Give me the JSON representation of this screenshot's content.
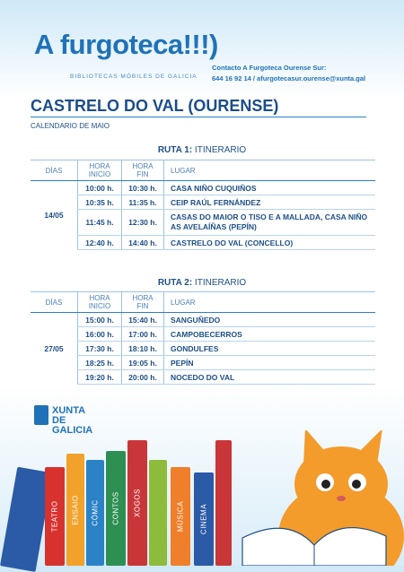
{
  "header": {
    "brand": "A furgoteca!!!)",
    "brand_sub": "BIBLIOTECAS MÓBILES DE GALICIA",
    "contact_title": "Contacto A Furgoteca Ourense Sur:",
    "contact_line": "644 16 92 14 / afurgotecasur.ourense@xunta.gal"
  },
  "town": "CASTRELO DO VAL (OURENSE)",
  "calendar": "CALENDARIO DE MAIO",
  "columns": {
    "dias": "DÍAS",
    "hora_inicio": [
      "HORA",
      "INICIO"
    ],
    "hora_fin": [
      "HORA",
      "FIN"
    ],
    "lugar": "LUGAR"
  },
  "route1": {
    "title_bold": "RUTA 1:",
    "title_rest": " ITINERARIO",
    "day": "14/05",
    "rows": [
      {
        "start": "10:00 h.",
        "end": "10:30 h.",
        "place": "CASA NIÑO CUQUIÑOS"
      },
      {
        "start": "10:35 h.",
        "end": "11:35 h.",
        "place": "CEIP RAÚL FERNÁNDEZ"
      },
      {
        "start": "11:45 h.",
        "end": "12:30 h.",
        "place": "CASAS DO MAIOR O TISO E A MALLADA, CASA NIÑO AS AVELAÍÑAS (PEPÍN)"
      },
      {
        "start": "12:40 h.",
        "end": "14:40 h.",
        "place": "CASTRELO DO VAL (CONCELLO)"
      }
    ]
  },
  "route2": {
    "title_bold": "RUTA 2:",
    "title_rest": " ITINERARIO",
    "day": "27/05",
    "rows": [
      {
        "start": "15:00 h.",
        "end": "15:40 h.",
        "place": "SANGUÑEDO"
      },
      {
        "start": "16:00 h.",
        "end": "17:00 h.",
        "place": "CAMPOBECERROS"
      },
      {
        "start": "17:30 h.",
        "end": "18:10 h.",
        "place": "GONDULFES"
      },
      {
        "start": "18:25 h.",
        "end": "19:05 h.",
        "place": "PEPÍN"
      },
      {
        "start": "19:20 h.",
        "end": "20:00 h.",
        "place": "NOCEDO DO VAL"
      }
    ]
  },
  "xunta": {
    "line1": "XUNTA",
    "line2": "DE GALICIA"
  },
  "books": [
    "TEATRO",
    "ENSAIO",
    "CÓMIC",
    "CONTOS",
    "XOGOS",
    "MÚSICA",
    "CINEMA"
  ],
  "colors": {
    "accent": "#1f72b8",
    "cat": "#f39b2b"
  }
}
